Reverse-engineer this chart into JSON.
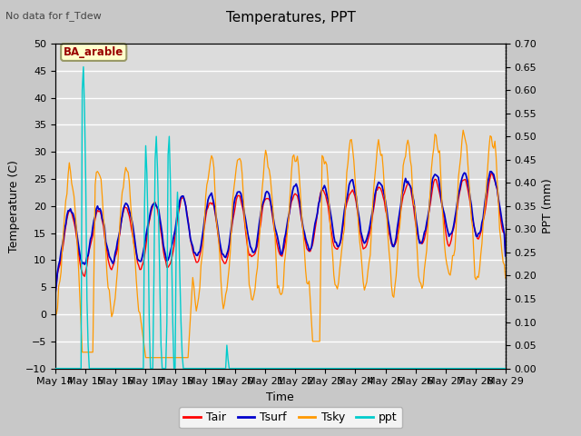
{
  "title": "Temperatures, PPT",
  "subtitle": "No data for f_Tdew",
  "site_label": "BA_arable",
  "xlabel": "Time",
  "ylabel_left": "Temperature (C)",
  "ylabel_right": "PPT (mm)",
  "ylim_left": [
    -10,
    50
  ],
  "ylim_right": [
    0.0,
    0.7
  ],
  "yticks_left": [
    -10,
    -5,
    0,
    5,
    10,
    15,
    20,
    25,
    30,
    35,
    40,
    45,
    50
  ],
  "yticks_right": [
    0.0,
    0.05,
    0.1,
    0.15,
    0.2,
    0.25,
    0.3,
    0.35,
    0.4,
    0.45,
    0.5,
    0.55,
    0.6,
    0.65,
    0.7
  ],
  "xtick_labels": [
    "May 14",
    "May 15",
    "May 16",
    "May 17",
    "May 18",
    "May 19",
    "May 20",
    "May 21",
    "May 22",
    "May 23",
    "May 24",
    "May 25",
    "May 26",
    "May 27",
    "May 28",
    "May 29"
  ],
  "color_tair": "#ff0000",
  "color_tsurf": "#0000cc",
  "color_tsky": "#ff9900",
  "color_ppt": "#00cccc",
  "background_fig": "#c8c8c8",
  "background_axes": "#dcdcdc",
  "grid_color": "#ffffff",
  "site_box_fc": "#ffffcc",
  "site_box_ec": "#999966",
  "site_text_color": "#990000",
  "n_days": 16,
  "n_pts_per_day": 24
}
